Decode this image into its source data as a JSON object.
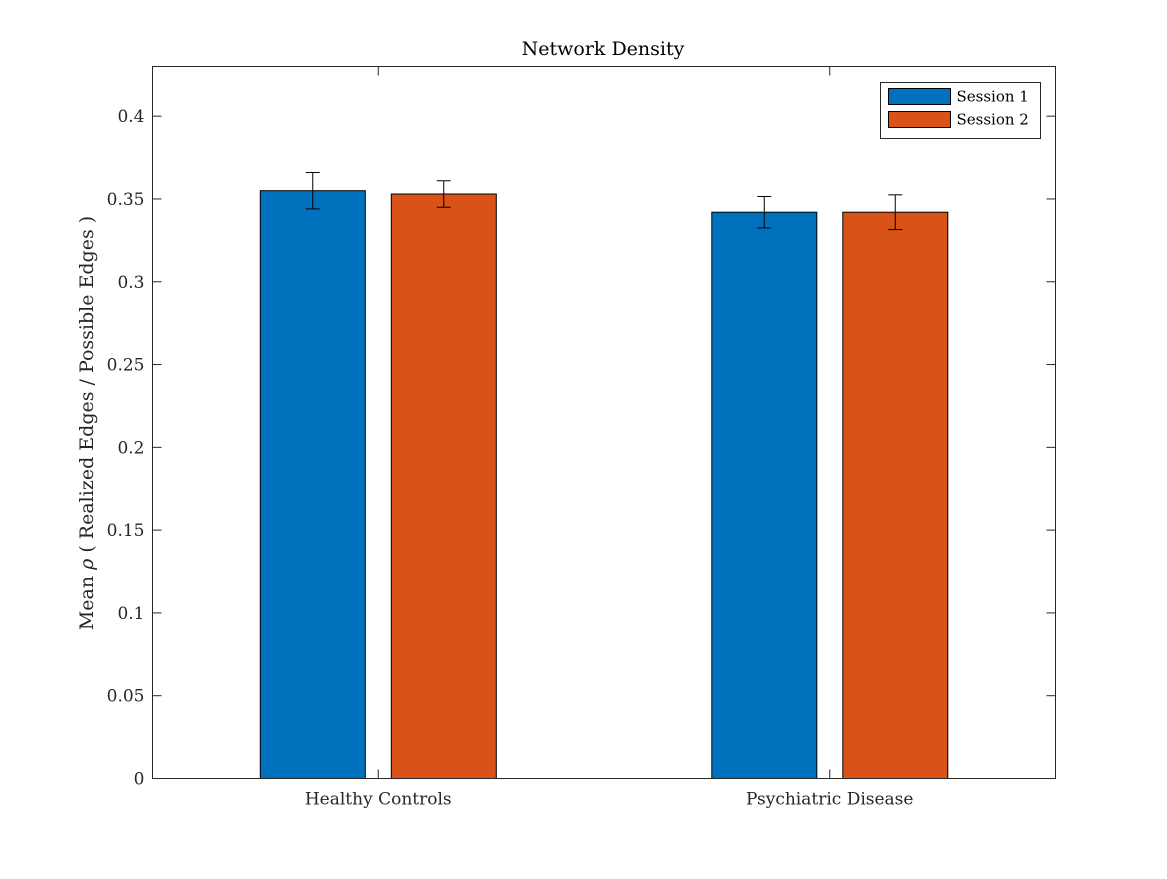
{
  "chart_data": {
    "type": "bar",
    "title": "Network Density",
    "xlabel": "",
    "ylabel_prefix": "Mean ",
    "ylabel_symbol": "ρ",
    "ylabel_suffix": " ( Realized Edges / Possible Edges )",
    "categories": [
      "Healthy Controls",
      "Psychiatric Disease"
    ],
    "series": [
      {
        "name": "Session 1",
        "color": "#0072BD",
        "values": [
          0.355,
          0.342
        ],
        "errors": [
          0.011,
          0.0095
        ]
      },
      {
        "name": "Session 2",
        "color": "#D95319",
        "values": [
          0.353,
          0.342
        ],
        "errors": [
          0.008,
          0.0105
        ]
      }
    ],
    "ylim": [
      0,
      0.43
    ],
    "yticks": [
      0,
      0.05,
      0.1,
      0.15,
      0.2,
      0.25,
      0.3,
      0.35,
      0.4
    ],
    "ytick_labels": [
      "0",
      "0.05",
      "0.1",
      "0.15",
      "0.2",
      "0.25",
      "0.3",
      "0.35",
      "0.4"
    ],
    "grid": false,
    "legend_position": "top-right"
  }
}
